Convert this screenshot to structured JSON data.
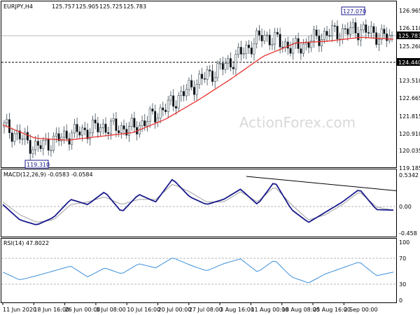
{
  "chart_data": [
    {
      "panel": "price",
      "type": "candlestick",
      "title": "EURJPY,H4",
      "ohlc_header": [
        "125.757",
        "125.905",
        "125.725",
        "125.783"
      ],
      "ylim": [
        119.185,
        127.27
      ],
      "y_ticks": [
        "126.965",
        "126.110",
        "125.260",
        "124.440",
        "123.510",
        "122.665",
        "121.815",
        "120.910",
        "120.035",
        "119.185"
      ],
      "current_price": "125.783",
      "support_level": 124.44,
      "support_label": "124.440",
      "high_marker": {
        "x": "24 Aug 20:00",
        "value": 127.07,
        "label": "127.070"
      },
      "low_marker": {
        "x": "18 Jun 08:00",
        "value": 119.31,
        "label": "119.310"
      },
      "series": [
        {
          "name": "",
          "kind": "close",
          "color": "#3c4a54",
          "x": [
            "11 Jun 2020",
            "18 Jun 16:00",
            "26 Jun 00:00",
            "3 Jul 08:00",
            "10 Jul 16:00",
            "20 Jul 00:00",
            "27 Jul 08:00",
            "3 Aug 16:00",
            "11 Aug 00:00",
            "18 Aug 08:00",
            "25 Aug 16:00",
            "2 Sep 00:00",
            "4 Sep 08:00"
          ],
          "y": [
            121.2,
            120.1,
            120.8,
            121.2,
            121.1,
            122.2,
            123.6,
            124.6,
            126.0,
            125.3,
            126.1,
            126.3,
            125.8
          ]
        },
        {
          "name": "",
          "kind": "moving-average",
          "color": "#e8312f",
          "x": [
            "11 Jun 2020",
            "18 Jun 16:00",
            "26 Jun 00:00",
            "3 Jul 08:00",
            "10 Jul 16:00",
            "20 Jul 00:00",
            "27 Jul 08:00",
            "3 Aug 16:00",
            "11 Aug 00:00",
            "18 Aug 08:00",
            "25 Aug 16:00",
            "2 Sep 00:00",
            "4 Sep 08:00"
          ],
          "y": [
            121.3,
            120.6,
            120.5,
            120.7,
            120.9,
            121.6,
            122.6,
            123.7,
            124.9,
            125.6,
            125.7,
            125.9,
            125.8
          ]
        }
      ]
    },
    {
      "panel": "macd",
      "type": "line",
      "title": "MACD(12,26,9) -0.0583 -0.0584",
      "ylim": [
        -0.55,
        0.6
      ],
      "y_ticks": [
        "0.5342",
        "0.00",
        "-0.458"
      ],
      "zero_line": 0,
      "trendline": {
        "from": {
          "x": "3 Aug 08:00",
          "value": 0.6
        },
        "to": {
          "x": "4 Sep 08:00",
          "value": 0.32
        }
      },
      "series": [
        {
          "name": "",
          "color": "#1a1a8c",
          "x": [
            "11 Jun 2020",
            "14 Jun",
            "18 Jun 16:00",
            "22 Jun",
            "26 Jun 00:00",
            "30 Jun",
            "3 Jul 08:00",
            "7 Jul",
            "10 Jul 16:00",
            "14 Jul",
            "20 Jul 00:00",
            "23 Jul",
            "27 Jul 08:00",
            "31 Jul",
            "3 Aug 16:00",
            "7 Aug",
            "11 Aug 00:00",
            "14 Aug",
            "18 Aug 08:00",
            "21 Aug",
            "25 Aug 16:00",
            "28 Aug",
            "2 Sep 00:00",
            "4 Sep 08:00"
          ],
          "y": [
            0.05,
            -0.25,
            -0.35,
            -0.2,
            0.15,
            0.05,
            0.3,
            -0.1,
            0.25,
            0.1,
            0.55,
            0.2,
            0.05,
            0.15,
            0.35,
            0.05,
            0.5,
            -0.05,
            -0.3,
            -0.1,
            0.1,
            0.35,
            -0.05,
            -0.06
          ]
        },
        {
          "name": "",
          "color": "#a0a0a0",
          "x": [
            "11 Jun 2020",
            "14 Jun",
            "18 Jun 16:00",
            "22 Jun",
            "26 Jun 00:00",
            "30 Jun",
            "3 Jul 08:00",
            "7 Jul",
            "10 Jul 16:00",
            "14 Jul",
            "20 Jul 00:00",
            "23 Jul",
            "27 Jul 08:00",
            "31 Jul",
            "3 Aug 16:00",
            "7 Aug",
            "11 Aug 00:00",
            "14 Aug",
            "18 Aug 08:00",
            "21 Aug",
            "25 Aug 16:00",
            "28 Aug",
            "2 Sep 00:00",
            "4 Sep 08:00"
          ],
          "y": [
            0.1,
            -0.15,
            -0.3,
            -0.25,
            0.05,
            0.1,
            0.2,
            0.05,
            0.15,
            0.15,
            0.45,
            0.3,
            0.1,
            0.1,
            0.3,
            0.1,
            0.4,
            0.05,
            -0.25,
            -0.15,
            0.05,
            0.3,
            0.0,
            -0.06
          ]
        }
      ]
    },
    {
      "panel": "rsi",
      "type": "line",
      "title": "RSI(14) 47.8022",
      "ylim": [
        0,
        100
      ],
      "y_ticks": [
        "100",
        "70",
        "30",
        "0"
      ],
      "levels": [
        70,
        30
      ],
      "series": [
        {
          "name": "",
          "color": "#3c8edb",
          "x": [
            "11 Jun 2020",
            "14 Jun",
            "18 Jun 16:00",
            "22 Jun",
            "26 Jun 00:00",
            "30 Jun",
            "3 Jul 08:00",
            "7 Jul",
            "10 Jul 16:00",
            "14 Jul",
            "20 Jul 00:00",
            "23 Jul",
            "27 Jul 08:00",
            "31 Jul",
            "3 Aug 16:00",
            "7 Aug",
            "11 Aug 00:00",
            "14 Aug",
            "18 Aug 08:00",
            "21 Aug",
            "25 Aug 16:00",
            "28 Aug",
            "2 Sep 00:00",
            "4 Sep 08:00"
          ],
          "y": [
            48,
            35,
            42,
            50,
            58,
            40,
            55,
            45,
            62,
            55,
            72,
            60,
            50,
            62,
            70,
            48,
            68,
            40,
            30,
            45,
            55,
            65,
            42,
            48
          ]
        }
      ]
    }
  ],
  "x_axis": {
    "labels": [
      "11 Jun 2020",
      "18 Jun 16:00",
      "26 Jun 00:00",
      "3 Jul 08:00",
      "10 Jul 16:00",
      "20 Jul 00:00",
      "27 Jul 08:00",
      "3 Aug 16:00",
      "11 Aug 00:00",
      "18 Aug 08:00",
      "25 Aug 16:00",
      "2 Sep 00:00"
    ]
  },
  "watermark": "ActionForex.com",
  "colors": {
    "background": "#ffffff",
    "axis": "#000000",
    "grid": "#c8c8c8",
    "candle_up": "#ffffff",
    "candle_down": "#000000",
    "candle_border": "#3c4a54",
    "ma": "#e8312f",
    "macd_main": "#1a1a8c",
    "macd_signal": "#a0a0a0",
    "rsi": "#3c8edb",
    "watermark": "#d9d9d9"
  }
}
